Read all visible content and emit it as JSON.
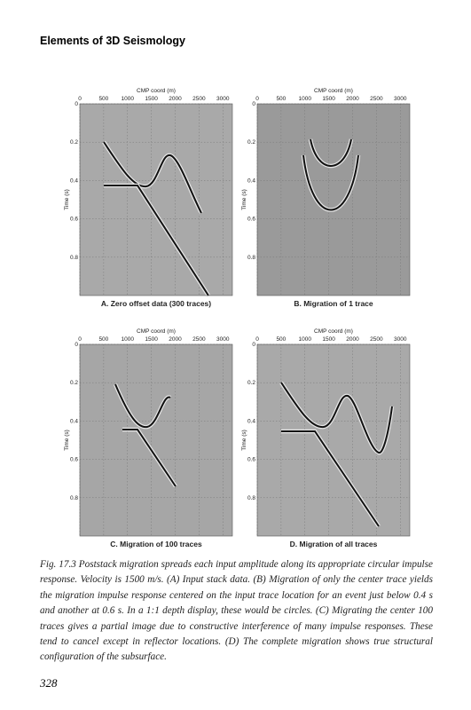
{
  "header": {
    "title": "Elements of 3D Seismology"
  },
  "panels": [
    {
      "x_label": "CMP coord (m)",
      "x_ticks": [
        "0",
        "500",
        "1000",
        "1500",
        "2000",
        "2500",
        "3000"
      ],
      "y_label": "Time (s)",
      "y_ticks": [
        "0",
        "0.2",
        "0.4",
        "0.6",
        "0.8"
      ],
      "caption": "A. Zero offset data (300 traces)"
    },
    {
      "x_label": "CMP coord (m)",
      "x_ticks": [
        "0",
        "500",
        "1000",
        "1500",
        "2000",
        "2500",
        "3000"
      ],
      "y_label": "Time (s)",
      "y_ticks": [
        "0",
        "0.2",
        "0.4",
        "0.6",
        "0.8"
      ],
      "caption": "B. Migration of 1 trace"
    },
    {
      "x_label": "CMP coord (m)",
      "x_ticks": [
        "0",
        "500",
        "1000",
        "1500",
        "2000",
        "2500",
        "3000"
      ],
      "y_label": "Time (s)",
      "y_ticks": [
        "0",
        "0.2",
        "0.4",
        "0.6",
        "0.8"
      ],
      "caption": "C. Migration of 100 traces"
    },
    {
      "x_label": "CMP coord (m)",
      "x_ticks": [
        "0",
        "500",
        "1000",
        "1500",
        "2000",
        "2500",
        "3000"
      ],
      "y_label": "Time (s)",
      "y_ticks": [
        "0",
        "0.2",
        "0.4",
        "0.6",
        "0.8"
      ],
      "caption": "D. Migration of all traces"
    }
  ],
  "figure_caption": "Fig. 17.3  Poststack migration spreads each input amplitude along its appropriate circular impulse response. Velocity is 1500 m/s. (A) Input stack data. (B) Migration of only the center trace yields the migration impulse response centered on the input trace location for an event just below 0.4 s and another at 0.6 s. In a 1:1 depth display, these would be circles. (C) Migrating the center 100 traces gives a partial image due to constructive interference of many impulse responses. These tend to cancel except in reflector locations. (D) The complete migration shows true structural configuration of the subsurface.",
  "page_number": "328"
}
